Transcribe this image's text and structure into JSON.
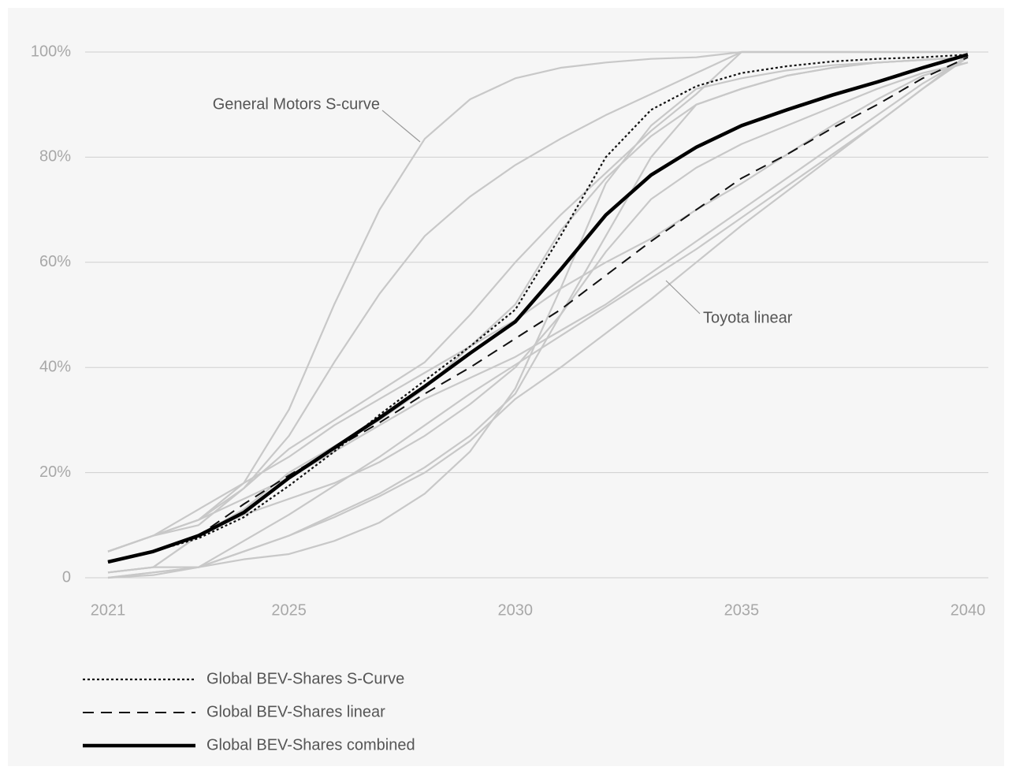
{
  "chart_data": {
    "type": "line",
    "x": [
      2021,
      2022,
      2023,
      2024,
      2025,
      2026,
      2027,
      2028,
      2029,
      2030,
      2031,
      2032,
      2033,
      2034,
      2035,
      2036,
      2037,
      2038,
      2039,
      2040
    ],
    "xlim": [
      2021,
      2040
    ],
    "xticks": [
      2021,
      2025,
      2030,
      2035,
      2040
    ],
    "ylim": [
      0,
      100
    ],
    "yticks": [
      0,
      {
        "value": 20,
        "label": "20%"
      },
      {
        "value": 40,
        "label": "40%"
      },
      {
        "value": 60,
        "label": "60%"
      },
      {
        "value": 80,
        "label": "80%"
      },
      {
        "value": 100,
        "label": "100%"
      }
    ],
    "grid": true,
    "series": [
      {
        "color": "#c8c8c8",
        "style": "solid",
        "annotation": "General Motors S-curve",
        "values": [
          5,
          8,
          11,
          18,
          32,
          52,
          70,
          83.5,
          91,
          95,
          97,
          98,
          98.7,
          99,
          100,
          100,
          100,
          100,
          100,
          100
        ]
      },
      {
        "color": "#c8c8c8",
        "style": "solid",
        "values": [
          5,
          8,
          10,
          17,
          27,
          41,
          54,
          65,
          72.5,
          78.5,
          83.5,
          88,
          92,
          96,
          100,
          100,
          100,
          100,
          100,
          100
        ]
      },
      {
        "color": "#c8c8c8",
        "style": "solid",
        "values": [
          5,
          8,
          11,
          17,
          24.5,
          30,
          35.5,
          41,
          50,
          60,
          69,
          77,
          85,
          92,
          100,
          100,
          100,
          100,
          100,
          100
        ]
      },
      {
        "color": "#c8c8c8",
        "style": "solid",
        "values": [
          0,
          0.5,
          2,
          3.5,
          4.5,
          7,
          10.5,
          16,
          24,
          36,
          55,
          75,
          86,
          93,
          95,
          96.5,
          97.5,
          98,
          98.5,
          99
        ]
      },
      {
        "color": "#c8c8c8",
        "style": "solid",
        "values": [
          1,
          2,
          2,
          5,
          8,
          12,
          16,
          21,
          27,
          35,
          50,
          65,
          80,
          90,
          93,
          95.5,
          97,
          98,
          98.5,
          99
        ]
      },
      {
        "color": "#c8c8c8",
        "style": "solid",
        "annotation": "Toyota linear",
        "values": [
          0,
          1,
          2,
          7,
          12,
          17.5,
          23,
          29,
          35,
          40.5,
          46,
          51.5,
          57,
          62.5,
          68.5,
          74.5,
          80.5,
          86.5,
          93,
          99
        ]
      },
      {
        "color": "#c8c8c8",
        "style": "solid",
        "values": [
          0,
          1,
          2,
          5,
          8,
          11.5,
          15.5,
          20,
          26,
          34,
          40,
          46.5,
          53,
          60,
          67,
          73.5,
          80,
          86.5,
          93,
          99.5
        ]
      },
      {
        "color": "#c8c8c8",
        "style": "solid",
        "values": [
          1,
          2,
          8,
          12,
          15,
          18,
          22,
          27,
          33,
          40,
          50,
          62,
          72,
          78,
          82.5,
          86,
          89.5,
          93,
          96,
          98
        ]
      },
      {
        "color": "#c8c8c8",
        "style": "solid",
        "values": [
          5,
          8,
          11,
          15,
          19,
          24,
          29,
          34,
          38,
          42,
          47,
          52,
          58,
          64,
          70,
          76,
          82,
          88,
          94,
          99
        ]
      },
      {
        "color": "#c8c8c8",
        "style": "solid",
        "values": [
          5,
          8,
          13,
          18,
          23,
          29,
          34,
          39,
          44,
          49,
          55,
          60,
          64.5,
          70,
          75,
          80.5,
          86,
          91,
          95.5,
          98
        ]
      },
      {
        "color": "#c8c8c8",
        "style": "solid",
        "values": [
          1,
          2,
          8,
          13,
          20,
          25,
          30,
          36,
          44,
          52,
          66,
          76,
          84,
          90,
          93,
          95.5,
          97,
          98,
          98.5,
          99
        ]
      },
      {
        "name": "Global BEV-Shares S-Curve",
        "color": "#111111",
        "style": "dotted",
        "values": [
          3,
          5,
          7.5,
          11.5,
          17.5,
          24,
          31,
          37.5,
          44,
          51,
          65,
          80,
          89,
          93.5,
          96,
          97.3,
          98.2,
          98.7,
          99,
          99.5
        ]
      },
      {
        "name": "Global BEV-Shares linear",
        "color": "#111111",
        "style": "dashed",
        "values": [
          3,
          5,
          8,
          14,
          19.5,
          24.5,
          29.5,
          35,
          40,
          45.5,
          51,
          57.5,
          64,
          70,
          76,
          80.5,
          85.5,
          90,
          95,
          99
        ]
      },
      {
        "name": "Global BEV-Shares combined",
        "color": "#000000",
        "style": "bold",
        "values": [
          3,
          5,
          8,
          12.4,
          19,
          24.7,
          30.4,
          36.4,
          42.7,
          48.7,
          58.6,
          69,
          76.6,
          81.9,
          86,
          89,
          91.8,
          94.3,
          97,
          99.5
        ]
      }
    ]
  }
}
